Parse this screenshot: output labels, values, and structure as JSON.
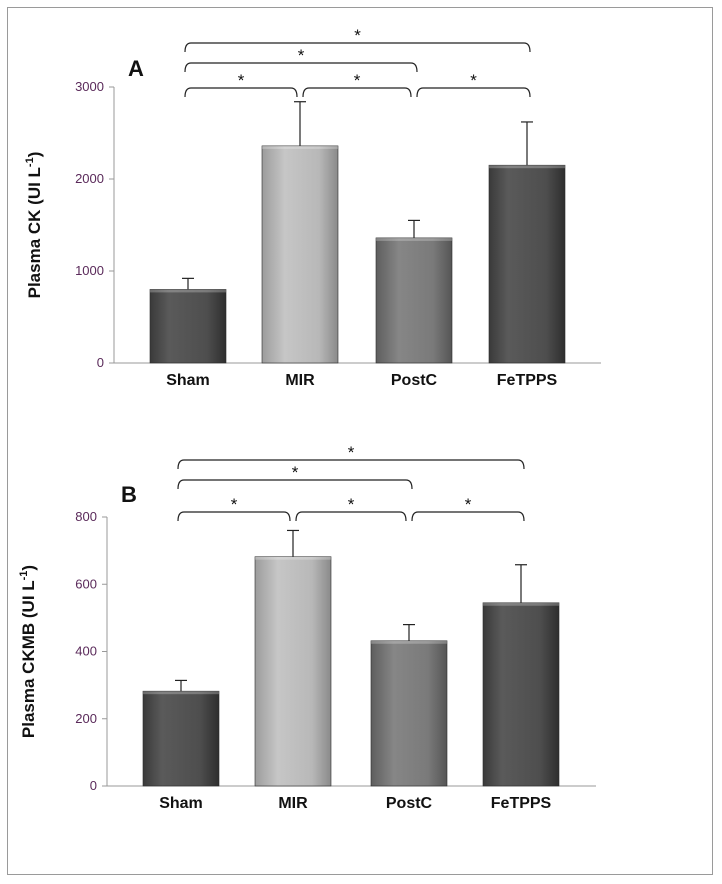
{
  "colors": {
    "frame_border": "#9a9a9a",
    "axis": "#999999",
    "tick_label": "#5a2a5a",
    "bar_dark": "#4a4a4a",
    "bar_light": "#b4b4b4",
    "bar_mid": "#747474",
    "bracket": "#222222"
  },
  "chart_data": [
    {
      "type": "bar",
      "panel_label": "A",
      "ylabel": "Plasma CK (UI L",
      "ylabel_sup": "-1",
      "ylabel_close": ")",
      "ylim": [
        0,
        3000
      ],
      "yticks": [
        0,
        1000,
        2000,
        3000
      ],
      "categories": [
        "Sham",
        "MIR",
        "PostC",
        "FeTPPS"
      ],
      "values": [
        800,
        2360,
        1360,
        2150
      ],
      "errors": [
        120,
        480,
        190,
        470
      ],
      "bar_shades": [
        "bar_dark",
        "bar_light",
        "bar_mid",
        "bar_dark"
      ],
      "significance": [
        {
          "from": 0,
          "to": 1,
          "label": "*"
        },
        {
          "from": 1,
          "to": 2,
          "label": "*"
        },
        {
          "from": 2,
          "to": 3,
          "label": "*"
        },
        {
          "from": 0,
          "to": 2,
          "label": "*"
        },
        {
          "from": 0,
          "to": 3,
          "label": "*"
        }
      ]
    },
    {
      "type": "bar",
      "panel_label": "B",
      "ylabel": "Plasma CKMB (UI L",
      "ylabel_sup": "-1",
      "ylabel_close": ")",
      "ylim": [
        0,
        800
      ],
      "yticks": [
        0,
        200,
        400,
        600,
        800
      ],
      "categories": [
        "Sham",
        "MIR",
        "PostC",
        "FeTPPS"
      ],
      "values": [
        282,
        682,
        432,
        545
      ],
      "errors": [
        32,
        78,
        48,
        113
      ],
      "bar_shades": [
        "bar_dark",
        "bar_light",
        "bar_mid",
        "bar_dark"
      ],
      "significance": [
        {
          "from": 0,
          "to": 1,
          "label": "*"
        },
        {
          "from": 1,
          "to": 2,
          "label": "*"
        },
        {
          "from": 2,
          "to": 3,
          "label": "*"
        },
        {
          "from": 0,
          "to": 2,
          "label": "*"
        },
        {
          "from": 0,
          "to": 3,
          "label": "*"
        }
      ]
    }
  ]
}
